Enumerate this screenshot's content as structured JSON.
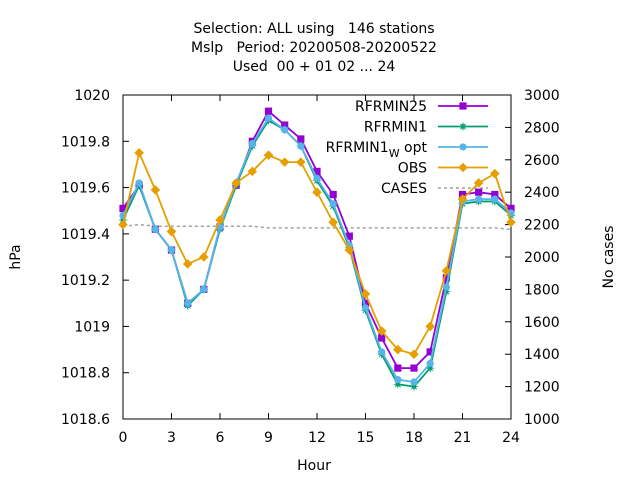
{
  "chart_data": {
    "type": "line",
    "title_lines": [
      "Selection: ALL using   146 stations",
      "Mslp   Period: 20200508-20200522",
      "Used  00 + 01 02 ... 24"
    ],
    "xlabel": "Hour",
    "ylabel": "hPa",
    "y2label": "No cases",
    "xlim": [
      0,
      24
    ],
    "ylim": [
      1018.6,
      1020.0
    ],
    "y2lim": [
      1000,
      3000
    ],
    "x_ticks": [
      0,
      3,
      6,
      9,
      12,
      15,
      18,
      21,
      24
    ],
    "y_ticks": [
      1018.6,
      1018.8,
      1019,
      1019.2,
      1019.4,
      1019.6,
      1019.8,
      1020
    ],
    "y_tick_labels": [
      "1018.6",
      "1018.8",
      "1019",
      "1019.2",
      "1019.4",
      "1019.6",
      "1019.8",
      "1020"
    ],
    "y2_ticks": [
      1000,
      1200,
      1400,
      1600,
      1800,
      2000,
      2200,
      2400,
      2600,
      2800,
      3000
    ],
    "grid": false,
    "legend_position": "top-right",
    "x": [
      0,
      1,
      2,
      3,
      4,
      5,
      6,
      7,
      8,
      9,
      10,
      11,
      12,
      13,
      14,
      15,
      16,
      17,
      18,
      19,
      20,
      21,
      22,
      23,
      24
    ],
    "series": [
      {
        "name": "RFRMIN25",
        "axis": "y1",
        "color": "#9400d3",
        "marker": "square",
        "values": [
          1019.51,
          1019.61,
          1019.42,
          1019.33,
          1019.1,
          1019.16,
          1019.43,
          1019.61,
          1019.8,
          1019.93,
          1019.87,
          1019.81,
          1019.67,
          1019.57,
          1019.39,
          1019.1,
          1018.95,
          1018.82,
          1018.82,
          1018.89,
          1019.21,
          1019.57,
          1019.58,
          1019.57,
          1019.51
        ]
      },
      {
        "name": "RFRMIN1",
        "axis": "y1",
        "color": "#009e73",
        "marker": "star",
        "values": [
          1019.46,
          1019.61,
          1019.42,
          1019.33,
          1019.09,
          1019.16,
          1019.42,
          1019.61,
          1019.78,
          1019.89,
          1019.85,
          1019.78,
          1019.63,
          1019.52,
          1019.34,
          1019.07,
          1018.88,
          1018.75,
          1018.74,
          1018.82,
          1019.15,
          1019.53,
          1019.54,
          1019.54,
          1019.48
        ]
      },
      {
        "name": "RFRMIN1",
        "name_subscript": "W",
        "name_suffix": " opt",
        "axis": "y1",
        "color": "#56b4e9",
        "marker": "circle",
        "values": [
          1019.48,
          1019.62,
          1019.42,
          1019.33,
          1019.1,
          1019.16,
          1019.43,
          1019.62,
          1019.79,
          1019.9,
          1019.85,
          1019.78,
          1019.64,
          1019.53,
          1019.35,
          1019.08,
          1018.89,
          1018.77,
          1018.76,
          1018.84,
          1019.17,
          1019.54,
          1019.55,
          1019.55,
          1019.49
        ]
      },
      {
        "name": "OBS",
        "axis": "y1",
        "color": "#e69f00",
        "marker": "diamond",
        "values": [
          1019.44,
          1019.75,
          1019.59,
          1019.41,
          1019.27,
          1019.3,
          1019.46,
          1019.62,
          1019.67,
          1019.74,
          1019.71,
          1019.71,
          1019.58,
          1019.45,
          1019.33,
          1019.14,
          1018.98,
          1018.9,
          1018.88,
          1019.0,
          1019.24,
          1019.55,
          1019.62,
          1019.66,
          1019.45
        ]
      },
      {
        "name": "CASES",
        "axis": "y2",
        "color": "#a0a0a0",
        "marker": "none",
        "dashed": true,
        "values": [
          2190,
          2200,
          2190,
          2190,
          2190,
          2190,
          2190,
          2190,
          2190,
          2180,
          2180,
          2180,
          2180,
          2180,
          2180,
          2180,
          2180,
          2180,
          2180,
          2180,
          2180,
          2180,
          2180,
          2180,
          2170
        ]
      }
    ]
  }
}
